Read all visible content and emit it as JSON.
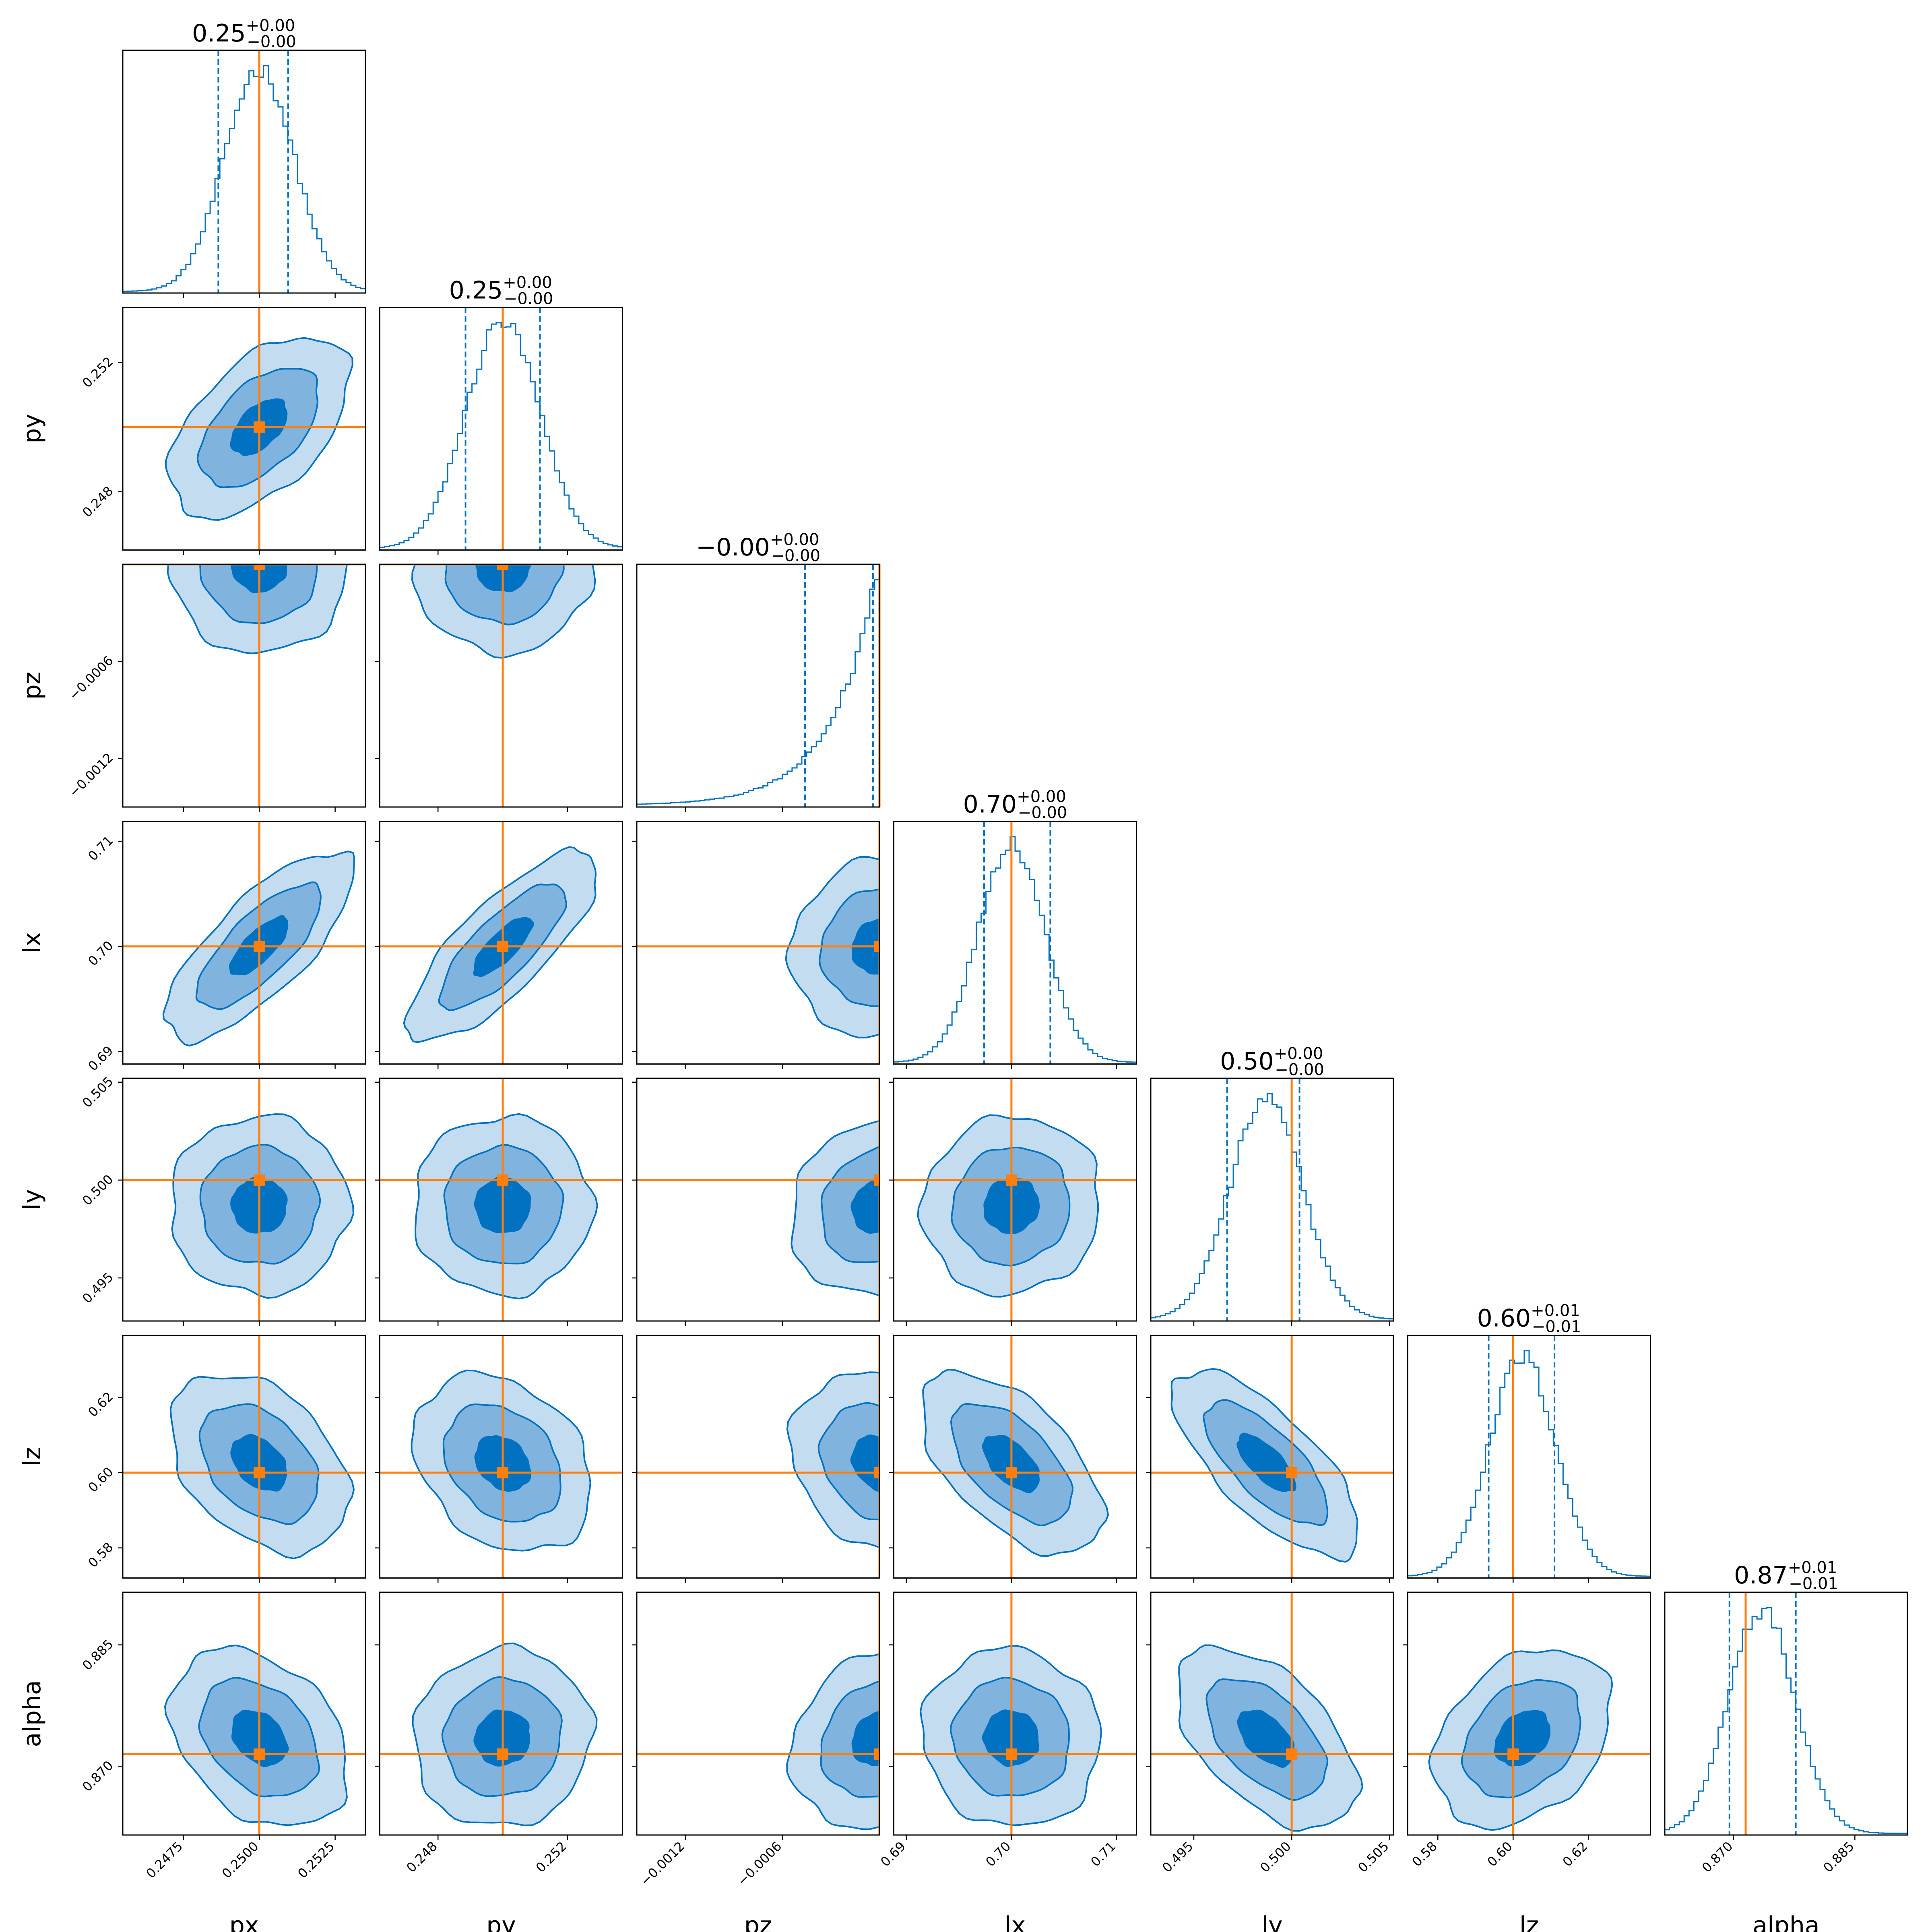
{
  "chart_data": {
    "type": "corner",
    "title": "",
    "parameters": [
      {
        "name": "px",
        "label": "px",
        "range": [
          0.2455,
          0.2535
        ],
        "truth": 0.25,
        "ticks": [
          {
            "value": 0.2475,
            "label": "0.2475"
          },
          {
            "value": 0.25,
            "label": "0.2500"
          },
          {
            "value": 0.2525,
            "label": "0.2525"
          }
        ],
        "title_value": "0.25",
        "title_plus": "+0.00",
        "title_minus": "−0.00",
        "quantiles": [
          0.24865,
          0.25095
        ],
        "hist_peak": 0.25
      },
      {
        "name": "py",
        "label": "py",
        "range": [
          0.2462,
          0.2537
        ],
        "truth": 0.25,
        "ticks": [
          {
            "value": 0.248,
            "label": "0.248"
          },
          {
            "value": 0.252,
            "label": "0.252"
          }
        ],
        "title_value": "0.25",
        "title_plus": "+0.00",
        "title_minus": "−0.00",
        "quantiles": [
          0.24885,
          0.25115
        ],
        "hist_peak": 0.25
      },
      {
        "name": "pz",
        "label": "pz",
        "range": [
          -0.0015,
          0.0
        ],
        "truth": 0.0,
        "ticks": [
          {
            "value": -0.0012,
            "label": "−0.0012"
          },
          {
            "value": -0.0006,
            "label": "−0.0006"
          }
        ],
        "title_value": "−0.00",
        "title_plus": "+0.00",
        "title_minus": "−0.00",
        "quantiles": [
          -0.00046,
          -4e-05
        ],
        "hist_peak": 0.0
      },
      {
        "name": "lx",
        "label": "lx",
        "range": [
          0.6888,
          0.7119
        ],
        "truth": 0.7,
        "ticks": [
          {
            "value": 0.69,
            "label": "0.69"
          },
          {
            "value": 0.7,
            "label": "0.70"
          },
          {
            "value": 0.71,
            "label": "0.71"
          }
        ],
        "title_value": "0.70",
        "title_plus": "+0.00",
        "title_minus": "−0.00",
        "quantiles": [
          0.6974,
          0.7037
        ],
        "hist_peak": 0.7
      },
      {
        "name": "ly",
        "label": "ly",
        "range": [
          0.4928,
          0.5052
        ],
        "truth": 0.5,
        "ticks": [
          {
            "value": 0.495,
            "label": "0.495"
          },
          {
            "value": 0.5,
            "label": "0.500"
          },
          {
            "value": 0.505,
            "label": "0.505"
          }
        ],
        "title_value": "0.50",
        "title_plus": "+0.00",
        "title_minus": "−0.00",
        "quantiles": [
          0.4967,
          0.5004
        ],
        "hist_peak": 0.4987
      },
      {
        "name": "lz",
        "label": "lz",
        "range": [
          0.572,
          0.6365
        ],
        "truth": 0.6,
        "ticks": [
          {
            "value": 0.58,
            "label": "0.58"
          },
          {
            "value": 0.6,
            "label": "0.60"
          },
          {
            "value": 0.62,
            "label": "0.62"
          }
        ],
        "title_value": "0.60",
        "title_plus": "+0.01",
        "title_minus": "−0.01",
        "quantiles": [
          0.5935,
          0.611
        ],
        "hist_peak": 0.6025
      },
      {
        "name": "alpha",
        "label": "alpha",
        "range": [
          0.8615,
          0.8915
        ],
        "truth": 0.8715,
        "ticks": [
          {
            "value": 0.87,
            "label": "0.870"
          },
          {
            "value": 0.885,
            "label": "0.885"
          }
        ],
        "title_value": "0.87",
        "title_plus": "+0.01",
        "title_minus": "−0.01",
        "quantiles": [
          0.8695,
          0.8777
        ],
        "hist_peak": 0.8735
      }
    ],
    "contour_levels": 3,
    "colors": {
      "samples": "#0072C1",
      "level1": "#C4DCF0",
      "level2": "#80B4DE",
      "level3": "#0072C1",
      "truth": "#FF7F0E",
      "frame": "#000000"
    }
  }
}
